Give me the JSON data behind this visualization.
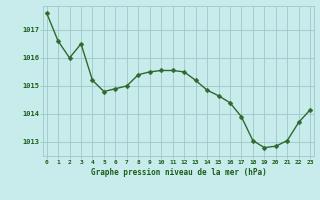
{
  "x": [
    0,
    1,
    2,
    3,
    4,
    5,
    6,
    7,
    8,
    9,
    10,
    11,
    12,
    13,
    14,
    15,
    16,
    17,
    18,
    19,
    20,
    21,
    22,
    23
  ],
  "y": [
    1017.6,
    1016.6,
    1016.0,
    1016.5,
    1015.2,
    1014.8,
    1014.9,
    1015.0,
    1015.4,
    1015.5,
    1015.55,
    1015.55,
    1015.5,
    1015.2,
    1014.85,
    1014.65,
    1014.4,
    1013.9,
    1013.05,
    1012.8,
    1012.85,
    1013.05,
    1013.7,
    1014.15
  ],
  "line_color": "#2d6a2d",
  "marker_color": "#2d6a2d",
  "bg_color": "#c8ecec",
  "grid_color": "#a0c8c8",
  "xlabel": "Graphe pression niveau de la mer (hPa)",
  "xlabel_color": "#1a5c1a",
  "tick_label_color": "#1a5c1a",
  "ylim": [
    1012.5,
    1017.85
  ],
  "xlim": [
    -0.3,
    23.3
  ],
  "yticks": [
    1013,
    1014,
    1015,
    1016,
    1017
  ],
  "xticks": [
    0,
    1,
    2,
    3,
    4,
    5,
    6,
    7,
    8,
    9,
    10,
    11,
    12,
    13,
    14,
    15,
    16,
    17,
    18,
    19,
    20,
    21,
    22,
    23
  ],
  "marker_size": 2.5,
  "line_width": 1.0
}
